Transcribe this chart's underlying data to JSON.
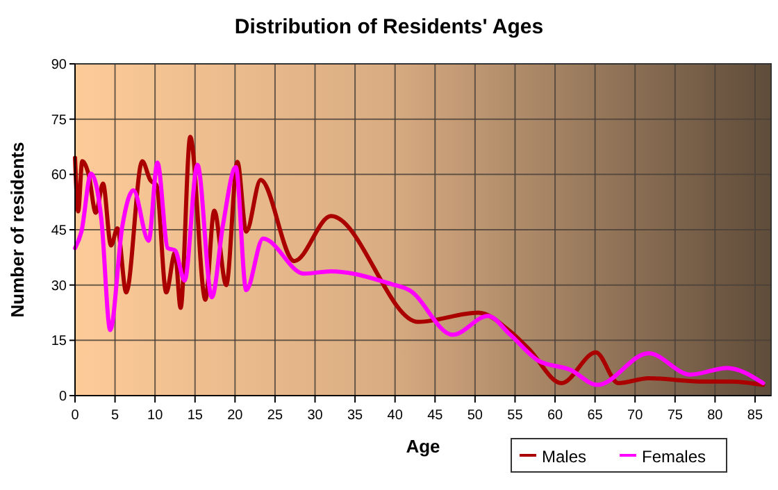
{
  "chart_data": {
    "type": "line",
    "title": "Distribution of Residents' Ages",
    "xlabel": "Age",
    "ylabel": "Number of residents",
    "xlim": [
      0,
      87
    ],
    "xticks": [
      0,
      5,
      10,
      15,
      20,
      25,
      30,
      35,
      40,
      45,
      50,
      55,
      60,
      65,
      70,
      75,
      80,
      85
    ],
    "ylim": [
      0,
      90
    ],
    "yticks": [
      0,
      15,
      30,
      45,
      60,
      75,
      90
    ],
    "grid": true,
    "legend": "bottom right",
    "marker": "none",
    "line_style": "solid",
    "series": [
      {
        "name": "Males",
        "color": "#aa0000",
        "x": [
          0,
          0.4,
          0.9,
          1.7,
          2.6,
          3.5,
          4.5,
          5.3,
          6.4,
          8.4,
          9.4,
          10.2,
          11.4,
          12.5,
          13.2,
          14.4,
          16.3,
          17.4,
          18.9,
          20.3,
          21.4,
          23.2,
          27.4,
          32,
          42.9,
          50.4,
          54.4,
          56.7,
          60.8,
          65.1,
          67.9,
          71.7,
          78.6,
          82,
          86
        ],
        "values": [
          64.5,
          50,
          63.6,
          60,
          49.6,
          57.5,
          40.7,
          45.4,
          28,
          63.6,
          58.5,
          57,
          28,
          38.8,
          23.8,
          70.2,
          26,
          50.2,
          30,
          63.4,
          44.5,
          58.5,
          36.5,
          48.7,
          20,
          22.5,
          17.4,
          12.7,
          3.4,
          11.7,
          3.4,
          4.7,
          3.8,
          3.8,
          2.9
        ]
      },
      {
        "name": "Females",
        "color": "#ff00ff",
        "x": [
          0,
          0.8,
          2,
          3.3,
          4.4,
          5.9,
          7.3,
          9.2,
          10.3,
          11.6,
          12.5,
          13.7,
          15.3,
          17.1,
          18.5,
          20.1,
          21.4,
          23.5,
          28.6,
          32,
          39.5,
          41.8,
          47.2,
          51.6,
          54.4,
          57.9,
          61.9,
          65.3,
          71.7,
          76.9,
          81.5,
          86
        ],
        "values": [
          40,
          44.5,
          60.2,
          47.7,
          17.8,
          45.8,
          55.7,
          42,
          63.2,
          40,
          39.4,
          31.2,
          62.6,
          26.7,
          46.4,
          62,
          28.6,
          42.6,
          33.1,
          33.7,
          30.3,
          28.6,
          16.5,
          21.6,
          16.5,
          9.5,
          7,
          2.9,
          11.5,
          5.7,
          7.5,
          3.4
        ]
      }
    ]
  }
}
